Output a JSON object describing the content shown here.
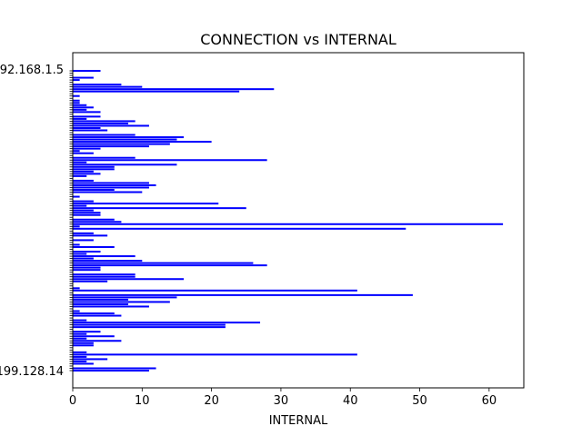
{
  "chart_data": {
    "type": "bar",
    "orientation": "horizontal",
    "title": "CONNECTION vs INTERNAL",
    "xlabel": "INTERNAL",
    "ylabel": "",
    "xlim": [
      0,
      65
    ],
    "xticks": [
      0,
      10,
      20,
      30,
      40,
      50,
      60
    ],
    "bar_color": "#0000ff",
    "top_category_label": "192.168.1.5",
    "bottom_category_label": "199.128.14",
    "values": [
      4,
      0,
      0,
      3,
      1,
      0,
      7,
      10,
      29,
      24,
      0,
      1,
      0,
      1,
      1,
      2,
      3,
      2,
      4,
      0,
      4,
      2,
      9,
      8,
      11,
      4,
      5,
      0,
      9,
      16,
      15,
      20,
      14,
      11,
      4,
      1,
      3,
      0,
      9,
      28,
      2,
      15,
      6,
      6,
      3,
      4,
      2,
      0,
      3,
      11,
      12,
      11,
      6,
      10,
      0,
      1,
      0,
      3,
      21,
      2,
      25,
      3,
      4,
      4,
      0,
      6,
      7,
      62,
      1,
      48,
      0,
      3,
      5,
      0,
      3,
      0,
      1,
      6,
      0,
      4,
      2,
      9,
      3,
      10,
      26,
      28,
      4,
      4,
      0,
      9,
      9,
      16,
      5,
      0,
      0,
      1,
      41,
      0,
      49,
      15,
      8,
      14,
      8,
      11,
      0,
      1,
      6,
      7,
      0,
      2,
      27,
      22,
      22,
      0,
      4,
      2,
      6,
      2,
      7,
      3,
      3,
      0,
      0,
      2,
      41,
      2,
      5,
      2,
      3,
      0,
      12,
      11
    ]
  }
}
